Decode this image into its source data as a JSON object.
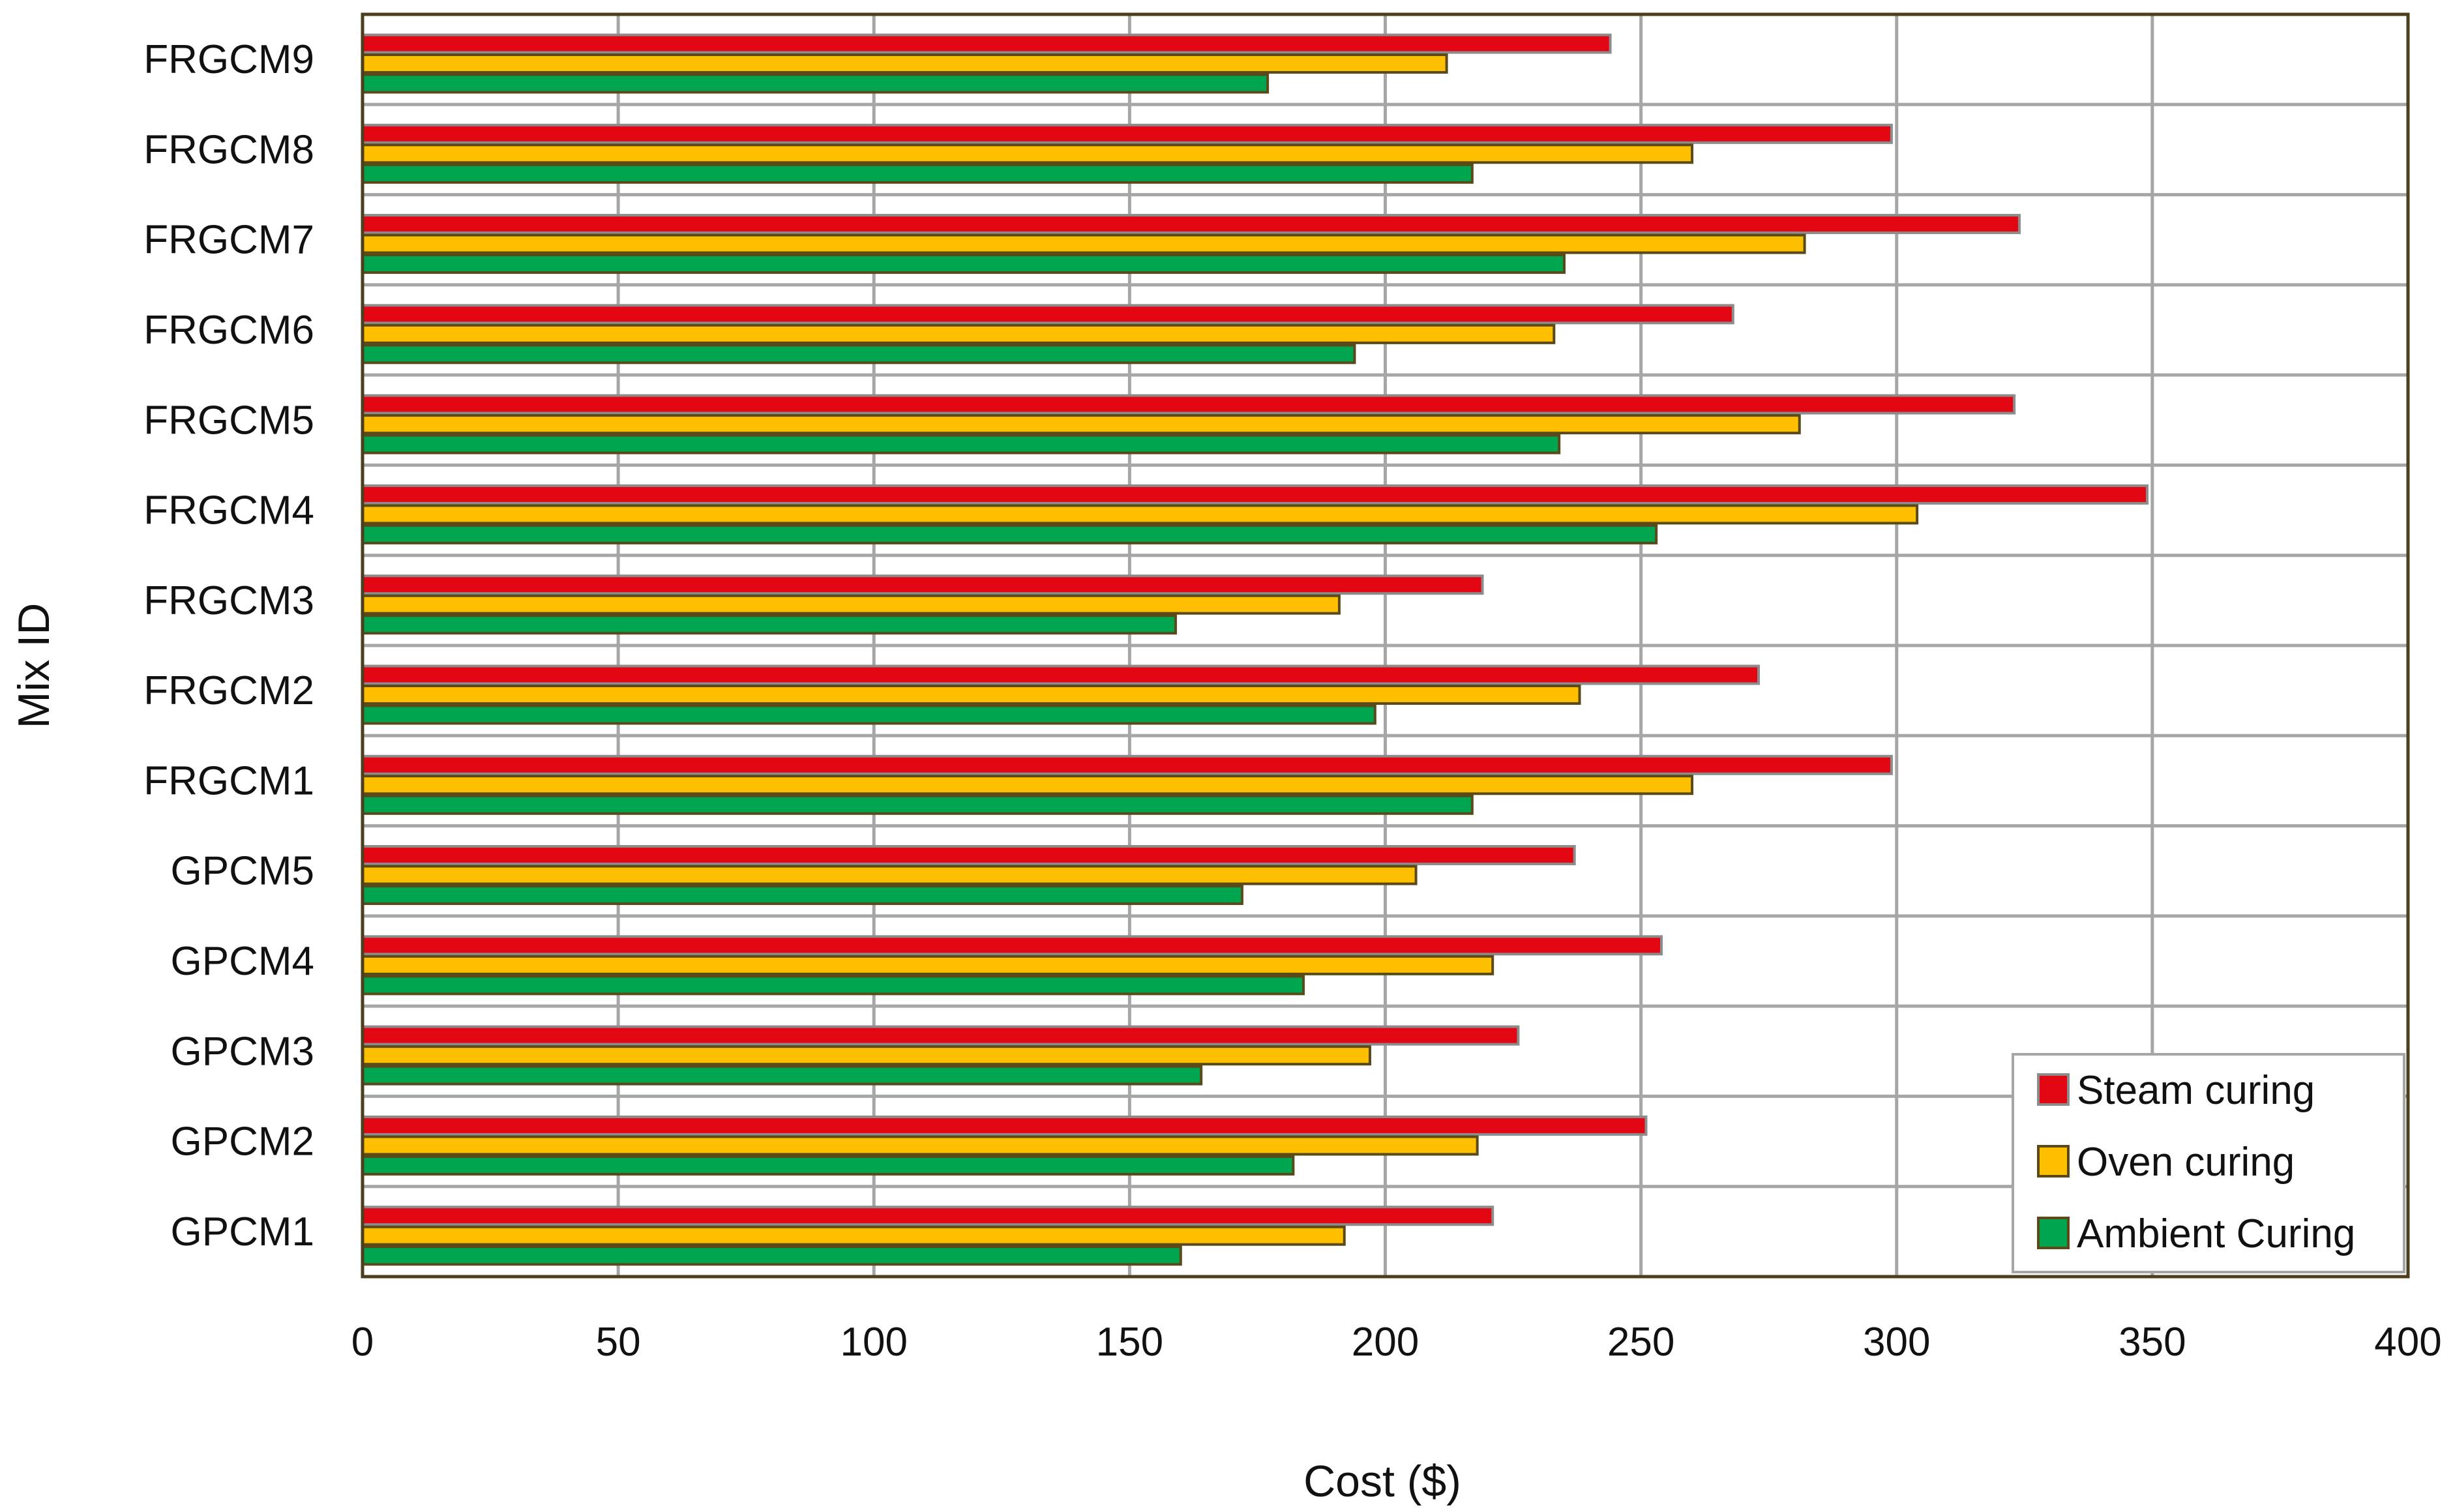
{
  "chart_data": {
    "type": "bar",
    "orientation": "horizontal",
    "title": "",
    "xlabel": "Cost ($)",
    "ylabel": "Mix ID",
    "xlim": [
      0,
      400
    ],
    "x_ticks": [
      0,
      50,
      100,
      150,
      200,
      250,
      300,
      350,
      400
    ],
    "grid": true,
    "legend_position": "bottom-right",
    "categories": [
      "GPCM1",
      "GPCM2",
      "GPCM3",
      "GPCM4",
      "GPCM5",
      "FRGCM1",
      "FRGCM2",
      "FRGCM3",
      "FRGCM4",
      "FRGCM5",
      "FRGCM6",
      "FRGCM7",
      "FRGCM8",
      "FRGCM9"
    ],
    "series": [
      {
        "name": "Steam curing",
        "color": "#e30613",
        "values": [
          221,
          251,
          226,
          254,
          237,
          299,
          273,
          219,
          349,
          323,
          268,
          324,
          299,
          244
        ]
      },
      {
        "name": "Oven curing",
        "color": "#fdbf00",
        "values": [
          192,
          218,
          197,
          221,
          206,
          260,
          238,
          191,
          304,
          281,
          233,
          282,
          260,
          212
        ]
      },
      {
        "name": "Ambient Curing",
        "color": "#00a64f",
        "values": [
          160,
          182,
          164,
          184,
          172,
          217,
          198,
          159,
          253,
          234,
          194,
          235,
          217,
          177
        ]
      }
    ]
  }
}
